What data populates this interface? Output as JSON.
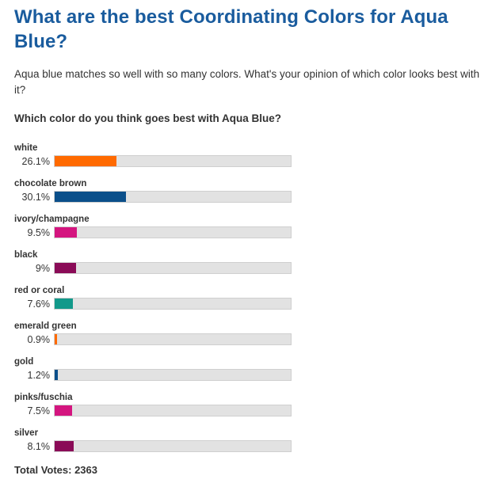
{
  "article": {
    "title": "What are the best Coordinating Colors for Aqua Blue?",
    "intro": "Aqua blue matches so well with so many colors. What's your opinion of which color looks best with it?"
  },
  "poll": {
    "question": "Which color do you think goes best with Aqua Blue?",
    "options": [
      {
        "label": "white",
        "percent_text": "26.1%",
        "percent": 26.1,
        "color": "#ff6a00"
      },
      {
        "label": "chocolate brown",
        "percent_text": "30.1%",
        "percent": 30.1,
        "color": "#0b4f8a"
      },
      {
        "label": "ivory/champagne",
        "percent_text": "9.5%",
        "percent": 9.5,
        "color": "#d4157f"
      },
      {
        "label": "black",
        "percent_text": "9%",
        "percent": 9.0,
        "color": "#8a0b57"
      },
      {
        "label": "red or coral",
        "percent_text": "7.6%",
        "percent": 7.6,
        "color": "#12998a"
      },
      {
        "label": "emerald green",
        "percent_text": "0.9%",
        "percent": 0.9,
        "color": "#ff6a00"
      },
      {
        "label": "gold",
        "percent_text": "1.2%",
        "percent": 1.2,
        "color": "#0b4f8a"
      },
      {
        "label": "pinks/fuschia",
        "percent_text": "7.5%",
        "percent": 7.5,
        "color": "#d4157f"
      },
      {
        "label": "silver",
        "percent_text": "8.1%",
        "percent": 8.1,
        "color": "#8a0b57"
      }
    ],
    "total_votes": "Total Votes: 2363"
  }
}
